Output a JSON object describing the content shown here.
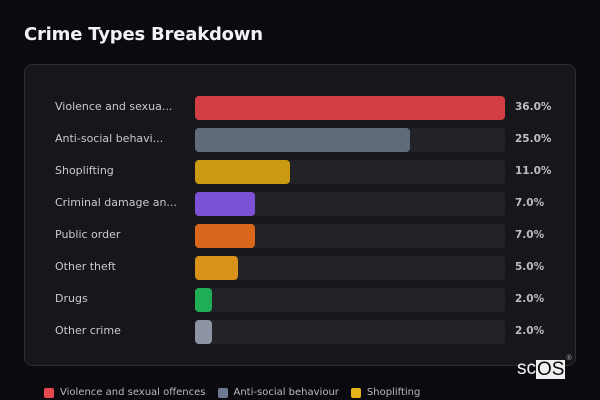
{
  "title": "Crime Types Breakdown",
  "chart_data": {
    "type": "bar",
    "orientation": "horizontal",
    "title": "Crime Types Breakdown",
    "categories": [
      "Violence and sexual offences",
      "Anti-social behaviour",
      "Shoplifting",
      "Criminal damage and arson",
      "Public order",
      "Other theft",
      "Drugs",
      "Other crime"
    ],
    "display_labels": [
      "Violence and sexua...",
      "Anti-social behavi...",
      "Shoplifting",
      "Criminal damage an...",
      "Public order",
      "Other theft",
      "Drugs",
      "Other crime"
    ],
    "values": [
      36.0,
      25.0,
      11.0,
      7.0,
      7.0,
      5.0,
      2.0,
      2.0
    ],
    "value_labels": [
      "36.0%",
      "25.0%",
      "11.0%",
      "7.0%",
      "7.0%",
      "5.0%",
      "2.0%",
      "2.0%"
    ],
    "colors": [
      "#d13f42",
      "#5f6b7a",
      "#c99a12",
      "#7b52d6",
      "#d9681c",
      "#d8921a",
      "#1fae56",
      "#8b93a4"
    ],
    "xlabel": "",
    "ylabel": "",
    "unit": "%",
    "grid": false,
    "legend_position": "bottom"
  },
  "legend": [
    {
      "label": "Violence and sexual offences",
      "color": "#e5484d"
    },
    {
      "label": "Anti-social behaviour",
      "color": "#6b7a8f"
    },
    {
      "label": "Shoplifting",
      "color": "#e6b41a"
    }
  ],
  "watermark": {
    "sc": "sc",
    "os": "OS",
    "reg": "®"
  }
}
